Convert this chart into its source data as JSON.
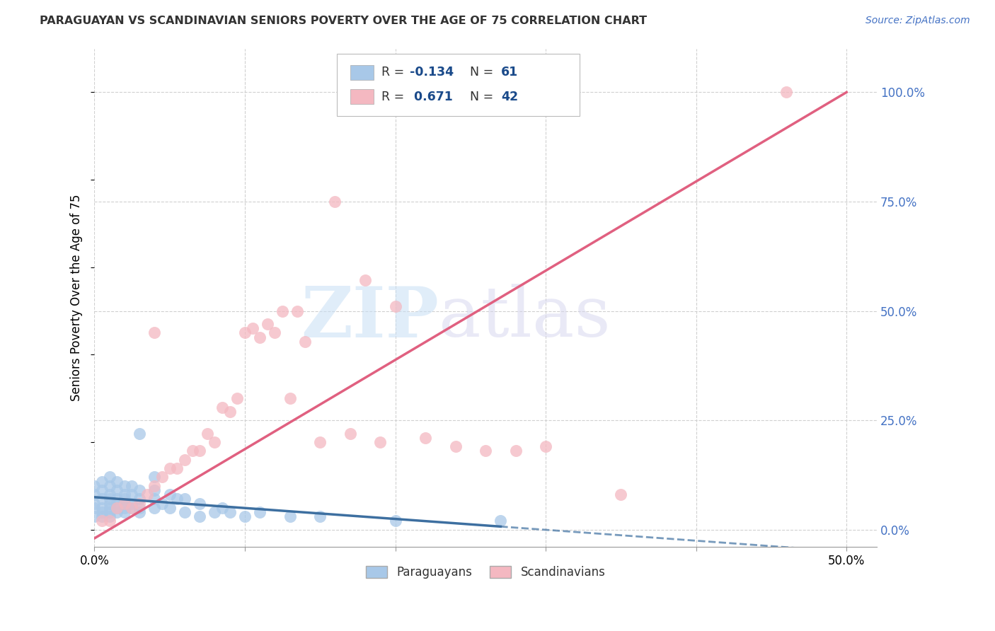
{
  "title": "PARAGUAYAN VS SCANDINAVIAN SENIORS POVERTY OVER THE AGE OF 75 CORRELATION CHART",
  "source": "Source: ZipAtlas.com",
  "ylabel": "Seniors Poverty Over the Age of 75",
  "xlim": [
    0.0,
    0.52
  ],
  "ylim": [
    -0.04,
    1.1
  ],
  "xticks": [
    0.0,
    0.1,
    0.2,
    0.3,
    0.4,
    0.5
  ],
  "xticklabels": [
    "0.0%",
    "",
    "",
    "",
    "",
    "50.0%"
  ],
  "yticks_right": [
    0.0,
    0.25,
    0.5,
    0.75,
    1.0
  ],
  "yticklabels_right": [
    "0.0%",
    "25.0%",
    "50.0%",
    "75.0%",
    "100.0%"
  ],
  "paraguayan_color": "#a8c8e8",
  "scandinavian_color": "#f4b8c1",
  "paraguayan_line_color": "#3d6fa0",
  "scandinavian_line_color": "#e06080",
  "background_color": "#ffffff",
  "grid_color": "#d0d0d0",
  "par_x": [
    0.0,
    0.0,
    0.0,
    0.0,
    0.0,
    0.005,
    0.005,
    0.005,
    0.005,
    0.005,
    0.005,
    0.01,
    0.01,
    0.01,
    0.01,
    0.01,
    0.01,
    0.01,
    0.01,
    0.015,
    0.015,
    0.015,
    0.015,
    0.015,
    0.015,
    0.02,
    0.02,
    0.02,
    0.02,
    0.02,
    0.02,
    0.025,
    0.025,
    0.025,
    0.025,
    0.03,
    0.03,
    0.03,
    0.03,
    0.03,
    0.04,
    0.04,
    0.04,
    0.04,
    0.045,
    0.05,
    0.05,
    0.055,
    0.06,
    0.06,
    0.07,
    0.07,
    0.08,
    0.085,
    0.09,
    0.1,
    0.11,
    0.13,
    0.15,
    0.2,
    0.27
  ],
  "par_y": [
    0.03,
    0.05,
    0.06,
    0.08,
    0.1,
    0.03,
    0.04,
    0.05,
    0.07,
    0.09,
    0.11,
    0.03,
    0.04,
    0.05,
    0.06,
    0.07,
    0.08,
    0.1,
    0.12,
    0.04,
    0.05,
    0.06,
    0.07,
    0.09,
    0.11,
    0.04,
    0.05,
    0.06,
    0.07,
    0.08,
    0.1,
    0.05,
    0.06,
    0.08,
    0.1,
    0.04,
    0.05,
    0.07,
    0.09,
    0.22,
    0.05,
    0.07,
    0.09,
    0.12,
    0.06,
    0.05,
    0.08,
    0.07,
    0.04,
    0.07,
    0.03,
    0.06,
    0.04,
    0.05,
    0.04,
    0.03,
    0.04,
    0.03,
    0.03,
    0.02,
    0.02
  ],
  "sca_x": [
    0.005,
    0.01,
    0.015,
    0.02,
    0.025,
    0.03,
    0.035,
    0.04,
    0.04,
    0.045,
    0.05,
    0.055,
    0.06,
    0.065,
    0.07,
    0.075,
    0.08,
    0.085,
    0.09,
    0.095,
    0.1,
    0.105,
    0.11,
    0.115,
    0.12,
    0.125,
    0.13,
    0.135,
    0.14,
    0.15,
    0.16,
    0.17,
    0.18,
    0.19,
    0.2,
    0.22,
    0.24,
    0.26,
    0.28,
    0.3,
    0.35,
    0.46
  ],
  "sca_y": [
    0.02,
    0.02,
    0.05,
    0.06,
    0.05,
    0.06,
    0.08,
    0.1,
    0.45,
    0.12,
    0.14,
    0.14,
    0.16,
    0.18,
    0.18,
    0.22,
    0.2,
    0.28,
    0.27,
    0.3,
    0.45,
    0.46,
    0.44,
    0.47,
    0.45,
    0.5,
    0.3,
    0.5,
    0.43,
    0.2,
    0.75,
    0.22,
    0.57,
    0.2,
    0.51,
    0.21,
    0.19,
    0.18,
    0.18,
    0.19,
    0.08,
    1.0
  ],
  "sca_line_x0": 0.0,
  "sca_line_y0": -0.02,
  "sca_line_x1": 0.5,
  "sca_line_y1": 1.0
}
